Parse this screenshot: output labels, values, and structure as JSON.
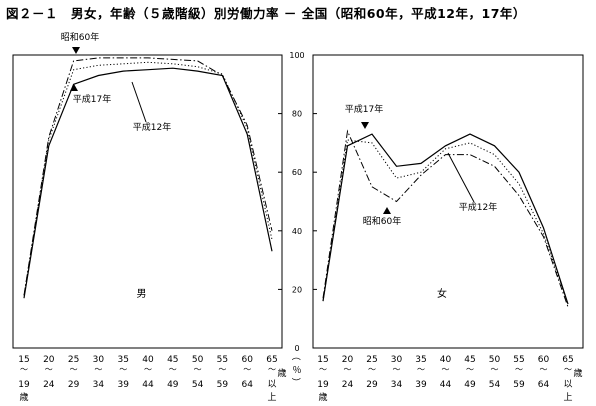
{
  "title": "図２－１　男女，年齢（５歳階級）別労働力率 － 全国（昭和60年，平成12年，17年）",
  "y_unit_label": "（％）",
  "chart_data": [
    {
      "type": "line",
      "panel_label": "男",
      "ylim": [
        0,
        100
      ],
      "yticks": [
        0,
        20,
        40,
        60,
        80,
        100
      ],
      "grid": false,
      "categories": [
        {
          "top": "15",
          "bottom": "19",
          "suffix": "歳"
        },
        {
          "top": "20",
          "bottom": "24"
        },
        {
          "top": "25",
          "bottom": "29"
        },
        {
          "top": "30",
          "bottom": "34"
        },
        {
          "top": "35",
          "bottom": "39"
        },
        {
          "top": "40",
          "bottom": "44"
        },
        {
          "top": "45",
          "bottom": "49"
        },
        {
          "top": "50",
          "bottom": "54"
        },
        {
          "top": "55",
          "bottom": "59"
        },
        {
          "top": "60",
          "bottom": "64"
        },
        {
          "top": "65",
          "bottom": "以",
          "suffix": "上",
          "side": "歳"
        }
      ],
      "series": [
        {
          "name": "平成17年",
          "style": "solid",
          "values": [
            17,
            69,
            90,
            93,
            94.5,
            95,
            95.5,
            94.5,
            93,
            73,
            33
          ]
        },
        {
          "name": "平成12年",
          "style": "dotted",
          "values": [
            18,
            71,
            95,
            96.5,
            97,
            97.5,
            97,
            96,
            93.5,
            75,
            37
          ]
        },
        {
          "name": "昭和60年",
          "style": "dashdot",
          "values": [
            18,
            72,
            98,
            99,
            99,
            99,
            98.5,
            98,
            93,
            76,
            40
          ]
        }
      ],
      "annotations": [
        {
          "text": "昭和60年",
          "target_series": "昭和60年",
          "marker": "down-triangle"
        },
        {
          "text": "平成17年",
          "target_series": "平成17年",
          "marker": "up-triangle"
        },
        {
          "text": "平成12年",
          "target_series": "平成12年",
          "marker": "pointer-line"
        }
      ]
    },
    {
      "type": "line",
      "panel_label": "女",
      "ylim": [
        0,
        100
      ],
      "yticks": [
        0,
        20,
        40,
        60,
        80,
        100
      ],
      "grid": false,
      "categories": [
        {
          "top": "15",
          "bottom": "19",
          "suffix": "歳"
        },
        {
          "top": "20",
          "bottom": "24"
        },
        {
          "top": "25",
          "bottom": "29"
        },
        {
          "top": "30",
          "bottom": "34"
        },
        {
          "top": "35",
          "bottom": "39"
        },
        {
          "top": "40",
          "bottom": "44"
        },
        {
          "top": "45",
          "bottom": "49"
        },
        {
          "top": "50",
          "bottom": "54"
        },
        {
          "top": "55",
          "bottom": "59"
        },
        {
          "top": "60",
          "bottom": "64"
        },
        {
          "top": "65",
          "bottom": "以",
          "suffix": "上",
          "side": "歳"
        }
      ],
      "series": [
        {
          "name": "平成17年",
          "style": "solid",
          "values": [
            16,
            69,
            73,
            62,
            63,
            69,
            73,
            69,
            60,
            41,
            15
          ]
        },
        {
          "name": "平成12年",
          "style": "dotted",
          "values": [
            16,
            71,
            70,
            58,
            60,
            68,
            70,
            66,
            56,
            39,
            15
          ]
        },
        {
          "name": "昭和60年",
          "style": "dashdot",
          "values": [
            17,
            74,
            55,
            50,
            59,
            66,
            66,
            62,
            52,
            38,
            14
          ]
        }
      ],
      "annotations": [
        {
          "text": "平成17年",
          "target_series": "平成17年",
          "marker": "down-triangle"
        },
        {
          "text": "昭和60年",
          "target_series": "昭和60年",
          "marker": "up-triangle"
        },
        {
          "text": "平成12年",
          "target_series": "平成12年",
          "marker": "pointer-line"
        }
      ]
    }
  ]
}
